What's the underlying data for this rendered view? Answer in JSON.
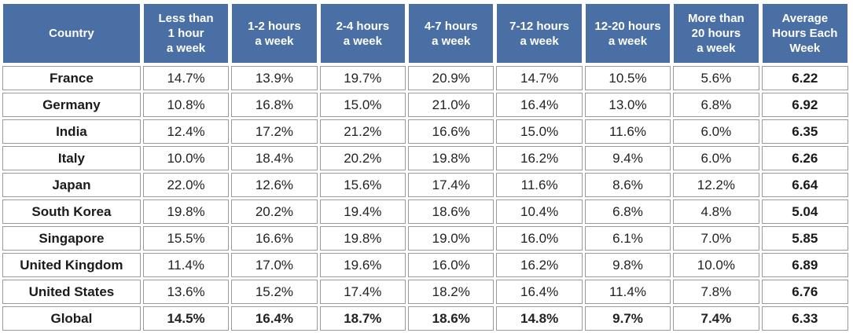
{
  "table": {
    "headers": [
      "Country",
      "Less than 1 hour a week",
      "1-2 hours a week",
      "2-4 hours a week",
      "4-7 hours a week",
      "7-12 hours a week",
      "12-20 hours a week",
      "More than 20 hours a week",
      "Average Hours Each Week"
    ],
    "header_lines": [
      [
        "Country"
      ],
      [
        "Less than",
        "1 hour",
        "a week"
      ],
      [
        "1-2 hours",
        "a week"
      ],
      [
        "2-4 hours",
        "a week"
      ],
      [
        "4-7 hours",
        "a week"
      ],
      [
        "7-12 hours",
        "a week"
      ],
      [
        "12-20 hours",
        "a week"
      ],
      [
        "More than",
        "20 hours",
        "a week"
      ],
      [
        "Average",
        "Hours Each",
        "Week"
      ]
    ],
    "rows": [
      [
        "France",
        "14.7%",
        "13.9%",
        "19.7%",
        "20.9%",
        "14.7%",
        "10.5%",
        "5.6%",
        "6.22"
      ],
      [
        "Germany",
        "10.8%",
        "16.8%",
        "15.0%",
        "21.0%",
        "16.4%",
        "13.0%",
        "6.8%",
        "6.92"
      ],
      [
        "India",
        "12.4%",
        "17.2%",
        "21.2%",
        "16.6%",
        "15.0%",
        "11.6%",
        "6.0%",
        "6.35"
      ],
      [
        "Italy",
        "10.0%",
        "18.4%",
        "20.2%",
        "19.8%",
        "16.2%",
        "9.4%",
        "6.0%",
        "6.26"
      ],
      [
        "Japan",
        "22.0%",
        "12.6%",
        "15.6%",
        "17.4%",
        "11.6%",
        "8.6%",
        "12.2%",
        "6.64"
      ],
      [
        "South Korea",
        "19.8%",
        "20.2%",
        "19.4%",
        "18.6%",
        "10.4%",
        "6.8%",
        "4.8%",
        "5.04"
      ],
      [
        "Singapore",
        "15.5%",
        "16.6%",
        "19.8%",
        "19.0%",
        "16.0%",
        "6.1%",
        "7.0%",
        "5.85"
      ],
      [
        "United Kingdom",
        "11.4%",
        "17.0%",
        "19.6%",
        "16.0%",
        "16.2%",
        "9.8%",
        "10.0%",
        "6.89"
      ],
      [
        "United States",
        "13.6%",
        "15.2%",
        "17.4%",
        "18.2%",
        "16.4%",
        "11.4%",
        "7.8%",
        "6.76"
      ]
    ],
    "global_row": [
      "Global",
      "14.5%",
      "16.4%",
      "18.7%",
      "18.6%",
      "14.8%",
      "9.7%",
      "7.4%",
      "6.33"
    ]
  },
  "colors": {
    "header_bg": "#4a6fa5",
    "header_text": "#ffffff",
    "cell_border": "#9a9a9a"
  }
}
